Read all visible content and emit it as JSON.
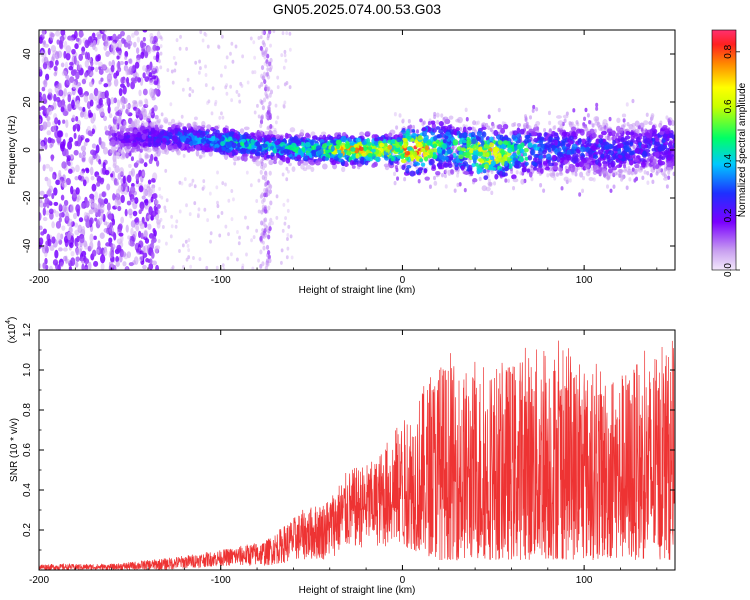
{
  "title": "GN05.2025.074.00.53.G03",
  "chart_data": [
    {
      "type": "heatmap",
      "title": "GN05.2025.074.00.53.G03",
      "xlabel": "Height of straight line (km)",
      "ylabel": "Frequency (Hz)",
      "xlim": [
        -200,
        150
      ],
      "ylim": [
        -50,
        50
      ],
      "x_ticks": [
        -200,
        -100,
        0,
        100
      ],
      "y_ticks": [
        -40,
        -20,
        0,
        20,
        40
      ],
      "colorbar": {
        "label": "Normalized spectral amplitude",
        "range": [
          0.0,
          0.88
        ],
        "ticks": [
          0.0,
          0.2,
          0.4,
          0.6,
          0.8
        ],
        "colormap": [
          "#ff2a55",
          "#ff3333",
          "#ff8800",
          "#ffff00",
          "#00ff44",
          "#00ffff",
          "#0050ff",
          "#8000ff",
          "#e6d8f5"
        ]
      },
      "description_points": [
        {
          "x": -165,
          "y": 5,
          "v": 0.15
        },
        {
          "x": -120,
          "y": 5,
          "v": 0.35
        },
        {
          "x": -95,
          "y": 3,
          "v": 0.5
        },
        {
          "x": -70,
          "y": 1,
          "v": 0.45
        },
        {
          "x": -45,
          "y": 0,
          "v": 0.55
        },
        {
          "x": -30,
          "y": 0,
          "v": 0.85
        },
        {
          "x": -10,
          "y": 0,
          "v": 0.75
        },
        {
          "x": 10,
          "y": 0,
          "v": 0.85
        },
        {
          "x": 25,
          "y": 2,
          "v": 0.45
        },
        {
          "x": 45,
          "y": -2,
          "v": 0.8
        },
        {
          "x": 80,
          "y": 0,
          "v": 0.35
        },
        {
          "x": 120,
          "y": 0,
          "v": 0.3
        },
        {
          "x": 145,
          "y": 2,
          "v": 0.3
        }
      ]
    },
    {
      "type": "line",
      "xlabel": "Height of straight line (km)",
      "ylabel": "SNR (10 * v/v)",
      "y_multiplier_label": "(x10",
      "y_multiplier_exp": "4",
      "xlim": [
        -200,
        150
      ],
      "ylim": [
        0,
        1.2
      ],
      "x_ticks": [
        -200,
        -100,
        0,
        100
      ],
      "y_ticks": [
        0.2,
        0.4,
        0.6,
        0.8,
        1.0,
        1.2
      ],
      "y_tick_labels": [
        "0.2",
        "0.4",
        "0.6",
        "0.8",
        "1.0",
        "1.2"
      ],
      "color": "#ee3333",
      "envelope": {
        "x": [
          -200,
          -160,
          -130,
          -100,
          -75,
          -55,
          -42,
          -30,
          -15,
          -5,
          0,
          20,
          40,
          60,
          80,
          100,
          120,
          150
        ],
        "low": [
          0.0,
          0.0,
          0.0,
          0.02,
          0.02,
          0.05,
          0.05,
          0.1,
          0.12,
          0.1,
          0.12,
          0.05,
          0.05,
          0.05,
          0.05,
          0.05,
          0.05,
          0.05
        ],
        "high": [
          0.03,
          0.03,
          0.06,
          0.1,
          0.15,
          0.3,
          0.35,
          0.5,
          0.55,
          0.7,
          0.75,
          1.05,
          1.0,
          1.05,
          1.15,
          1.0,
          1.0,
          1.1
        ]
      }
    }
  ]
}
